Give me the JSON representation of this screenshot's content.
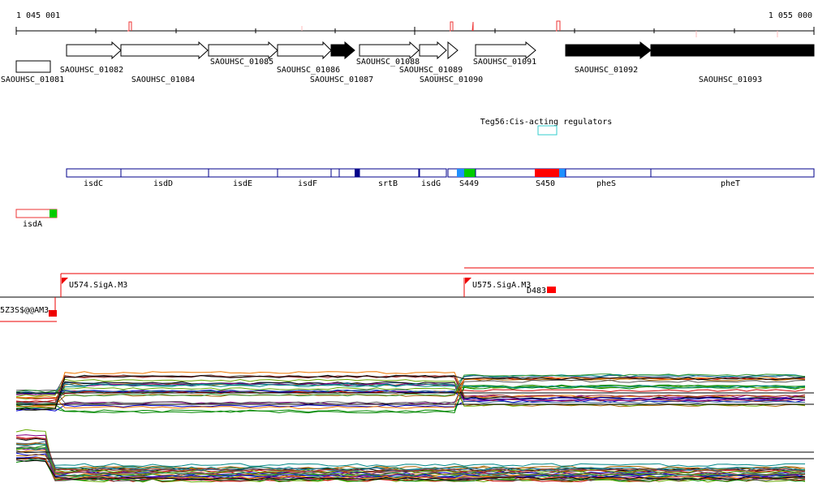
{
  "scale": {
    "start": "1 045 001",
    "end": "1 055 000"
  },
  "genes": [
    "SAOUHSC_01081",
    "SAOUHSC_01082",
    "SAOUHSC_01084",
    "SAOUHSC_01085",
    "SAOUHSC_01086",
    "SAOUHSC_01087",
    "SAOUHSC_01088",
    "SAOUHSC_01089",
    "SAOUHSC_01090",
    "SAOUHSC_01091",
    "SAOUHSC_01092",
    "SAOUHSC_01093"
  ],
  "regulator": "Teg56:Cis-acting regulators",
  "features": [
    "isdC",
    "isdD",
    "isdE",
    "isdF",
    "srtB",
    "isdG",
    "S449",
    "S450",
    "pheS",
    "pheT"
  ],
  "operon": "isdA",
  "promoters": [
    "U574.SigA.M3",
    "U575.SigA.M3",
    "D483",
    "5Z3S$@@AM3"
  ]
}
